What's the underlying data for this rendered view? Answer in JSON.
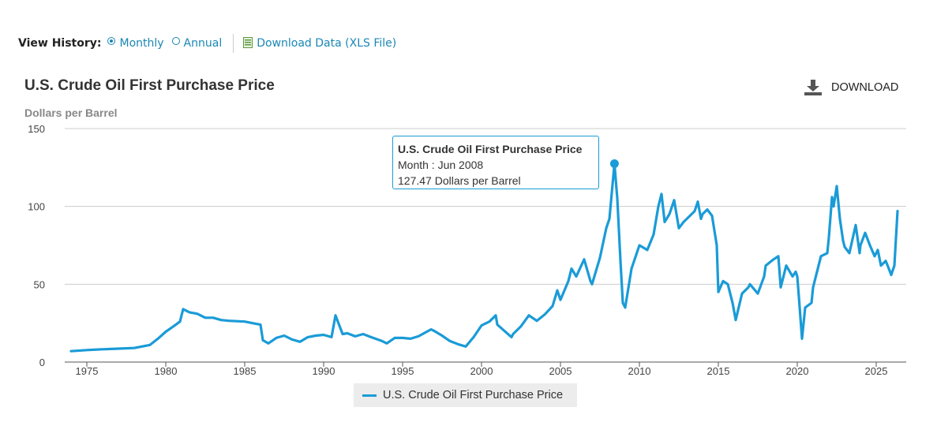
{
  "history": {
    "label": "View History:",
    "monthly": "Monthly",
    "annual": "Annual",
    "selected": "Monthly",
    "download_data": "Download Data (XLS File)"
  },
  "download_button": "DOWNLOAD",
  "tooltip": {
    "title": "U.S. Crude Oil First Purchase Price",
    "month": "Month : Jun 2008",
    "value": "127.47 Dollars per Barrel"
  },
  "colors": {
    "series": "#1a9bd7",
    "grid": "#cccccc",
    "link": "#1a87b5"
  },
  "chart_data": {
    "type": "line",
    "title": "U.S. Crude Oil First Purchase Price",
    "ylabel": "Dollars per Barrel",
    "xlabel": "",
    "ylim": [
      0,
      150
    ],
    "xlim": [
      1973.6,
      2026.9
    ],
    "yticks": [
      0,
      50,
      100,
      150
    ],
    "xticks": [
      1975,
      1980,
      1985,
      1990,
      1995,
      2000,
      2005,
      2010,
      2015,
      2020,
      2025
    ],
    "grid": true,
    "legend_position": "bottom-center",
    "highlight": {
      "x": 2008.42,
      "y": 127.47
    },
    "series": [
      {
        "name": "U.S. Crude Oil First Purchase Price",
        "points": [
          [
            1974.0,
            7.0
          ],
          [
            1975.0,
            7.7
          ],
          [
            1976.0,
            8.2
          ],
          [
            1977.0,
            8.6
          ],
          [
            1978.0,
            9.0
          ],
          [
            1979.0,
            11.0
          ],
          [
            1979.5,
            15.0
          ],
          [
            1980.0,
            19.5
          ],
          [
            1980.5,
            23.0
          ],
          [
            1980.9,
            26.0
          ],
          [
            1981.1,
            34.0
          ],
          [
            1981.5,
            32.0
          ],
          [
            1982.0,
            31.0
          ],
          [
            1982.5,
            28.5
          ],
          [
            1983.0,
            28.5
          ],
          [
            1983.5,
            27.0
          ],
          [
            1984.0,
            26.5
          ],
          [
            1985.0,
            26.0
          ],
          [
            1985.5,
            25.0
          ],
          [
            1986.0,
            24.0
          ],
          [
            1986.15,
            14.0
          ],
          [
            1986.5,
            12.0
          ],
          [
            1987.0,
            15.5
          ],
          [
            1987.5,
            17.0
          ],
          [
            1988.0,
            14.5
          ],
          [
            1988.5,
            13.0
          ],
          [
            1989.0,
            16.0
          ],
          [
            1989.5,
            17.0
          ],
          [
            1990.0,
            17.5
          ],
          [
            1990.5,
            16.0
          ],
          [
            1990.75,
            30.0
          ],
          [
            1990.9,
            26.0
          ],
          [
            1991.2,
            18.0
          ],
          [
            1991.5,
            18.5
          ],
          [
            1992.0,
            16.5
          ],
          [
            1992.5,
            18.0
          ],
          [
            1993.0,
            16.0
          ],
          [
            1993.7,
            13.5
          ],
          [
            1994.0,
            12.0
          ],
          [
            1994.5,
            15.5
          ],
          [
            1995.0,
            15.5
          ],
          [
            1995.5,
            15.0
          ],
          [
            1996.0,
            16.5
          ],
          [
            1996.8,
            21.0
          ],
          [
            1997.0,
            20.0
          ],
          [
            1997.5,
            17.0
          ],
          [
            1998.0,
            13.5
          ],
          [
            1998.5,
            11.5
          ],
          [
            1999.0,
            10.0
          ],
          [
            1999.5,
            16.0
          ],
          [
            2000.0,
            23.5
          ],
          [
            2000.5,
            26.0
          ],
          [
            2000.9,
            30.0
          ],
          [
            2001.0,
            24.0
          ],
          [
            2001.9,
            16.0
          ],
          [
            2002.0,
            18.0
          ],
          [
            2002.5,
            23.0
          ],
          [
            2003.0,
            30.0
          ],
          [
            2003.5,
            26.5
          ],
          [
            2004.0,
            30.5
          ],
          [
            2004.5,
            36.0
          ],
          [
            2004.8,
            46.0
          ],
          [
            2005.0,
            40.0
          ],
          [
            2005.5,
            52.0
          ],
          [
            2005.7,
            60.0
          ],
          [
            2006.0,
            55.0
          ],
          [
            2006.5,
            66.0
          ],
          [
            2006.9,
            52.0
          ],
          [
            2007.0,
            50.0
          ],
          [
            2007.5,
            67.0
          ],
          [
            2007.9,
            86.0
          ],
          [
            2008.1,
            92.0
          ],
          [
            2008.42,
            127.47
          ],
          [
            2008.6,
            105.0
          ],
          [
            2008.8,
            65.0
          ],
          [
            2008.95,
            38.0
          ],
          [
            2009.1,
            35.0
          ],
          [
            2009.5,
            60.0
          ],
          [
            2009.9,
            72.0
          ],
          [
            2010.0,
            75.0
          ],
          [
            2010.5,
            72.0
          ],
          [
            2010.9,
            82.0
          ],
          [
            2011.2,
            100.0
          ],
          [
            2011.4,
            108.0
          ],
          [
            2011.6,
            90.0
          ],
          [
            2011.9,
            95.0
          ],
          [
            2012.2,
            104.0
          ],
          [
            2012.5,
            86.0
          ],
          [
            2012.8,
            90.0
          ],
          [
            2013.0,
            92.0
          ],
          [
            2013.5,
            97.0
          ],
          [
            2013.7,
            103.0
          ],
          [
            2013.9,
            92.0
          ],
          [
            2014.0,
            95.0
          ],
          [
            2014.3,
            98.0
          ],
          [
            2014.6,
            94.0
          ],
          [
            2014.9,
            75.0
          ],
          [
            2015.0,
            45.0
          ],
          [
            2015.3,
            52.0
          ],
          [
            2015.6,
            50.0
          ],
          [
            2015.9,
            38.0
          ],
          [
            2016.1,
            27.0
          ],
          [
            2016.5,
            44.0
          ],
          [
            2016.9,
            48.0
          ],
          [
            2017.0,
            50.0
          ],
          [
            2017.5,
            44.0
          ],
          [
            2017.9,
            55.0
          ],
          [
            2018.0,
            62.0
          ],
          [
            2018.5,
            66.0
          ],
          [
            2018.8,
            68.0
          ],
          [
            2018.95,
            48.0
          ],
          [
            2019.3,
            62.0
          ],
          [
            2019.7,
            55.0
          ],
          [
            2019.9,
            58.0
          ],
          [
            2020.0,
            55.0
          ],
          [
            2020.1,
            42.0
          ],
          [
            2020.3,
            15.0
          ],
          [
            2020.5,
            35.0
          ],
          [
            2020.9,
            38.0
          ],
          [
            2021.0,
            48.0
          ],
          [
            2021.5,
            68.0
          ],
          [
            2021.9,
            70.0
          ],
          [
            2022.0,
            80.0
          ],
          [
            2022.2,
            106.0
          ],
          [
            2022.3,
            100.0
          ],
          [
            2022.5,
            113.0
          ],
          [
            2022.7,
            92.0
          ],
          [
            2022.9,
            78.0
          ],
          [
            2023.0,
            74.0
          ],
          [
            2023.3,
            70.0
          ],
          [
            2023.7,
            88.0
          ],
          [
            2023.95,
            70.0
          ],
          [
            2024.0,
            75.0
          ],
          [
            2024.3,
            83.0
          ],
          [
            2024.6,
            75.0
          ],
          [
            2024.9,
            68.0
          ],
          [
            2025.1,
            72.0
          ],
          [
            2025.3,
            62.0
          ],
          [
            2025.6,
            65.0
          ],
          [
            2025.8,
            60.0
          ],
          [
            2025.95,
            56.0
          ],
          [
            2026.15,
            62.0
          ],
          [
            2026.35,
            97.0
          ]
        ]
      }
    ]
  }
}
